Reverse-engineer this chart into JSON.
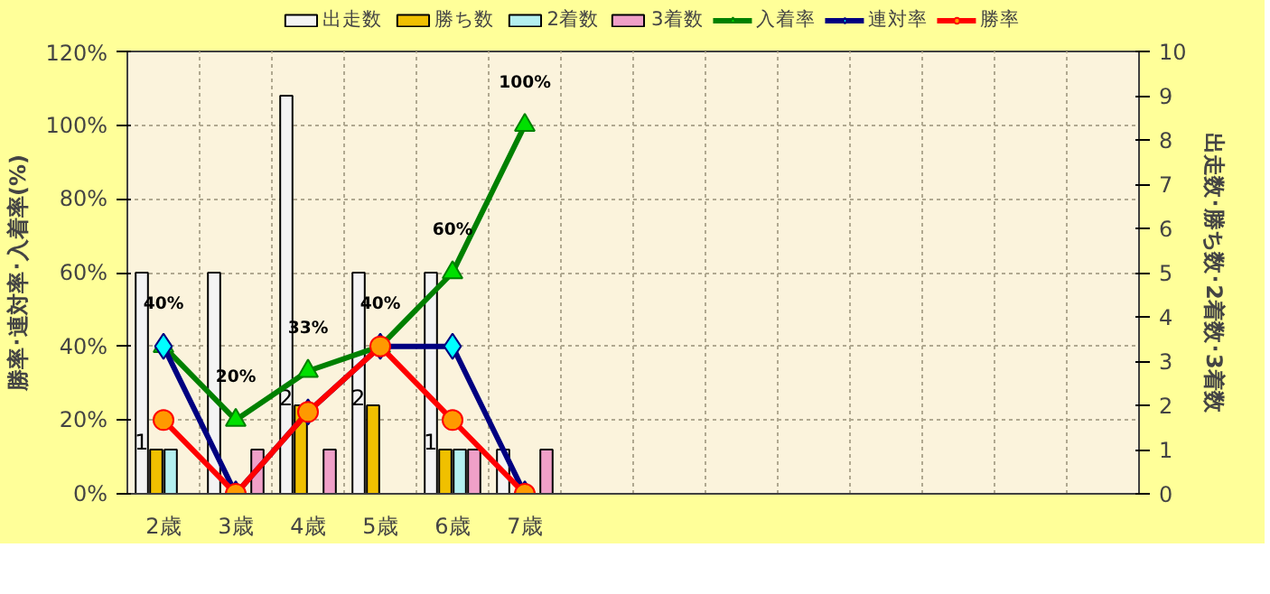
{
  "chart_data": {
    "type": "bar",
    "categories": [
      "2歳",
      "3歳",
      "4歳",
      "5歳",
      "6歳",
      "7歳",
      null,
      null,
      null,
      null,
      null,
      null,
      null,
      null
    ],
    "ylabel": "勝率･連対率･入着率(%)",
    "y2label": "出走数･勝ち数･2着数･3着数",
    "ylim": [
      0,
      120
    ],
    "yticks": [
      {
        "value": 0,
        "label": "0%"
      },
      {
        "value": 20,
        "label": "20%"
      },
      {
        "value": 40,
        "label": "40%"
      },
      {
        "value": 60,
        "label": "60%"
      },
      {
        "value": 80,
        "label": "80%"
      },
      {
        "value": 100,
        "label": "100%"
      },
      {
        "value": 120,
        "label": "120%"
      }
    ],
    "y2lim": [
      0,
      10
    ],
    "y2ticks": [
      0,
      1,
      2,
      3,
      4,
      5,
      6,
      7,
      8,
      9,
      10
    ],
    "grid": true,
    "legend": "top",
    "series": [
      {
        "name": "出走数",
        "axis": "y2",
        "color": "#f4f4f4",
        "values": [
          5,
          5,
          9,
          5,
          5,
          1,
          null,
          null,
          null,
          null,
          null,
          null,
          null,
          null
        ]
      },
      {
        "name": "勝ち数",
        "axis": "y2",
        "color": "#f0c000",
        "values": [
          1,
          0,
          2,
          2,
          1,
          0,
          null,
          null,
          null,
          null,
          null,
          null,
          null,
          null
        ],
        "value_labels": [
          "1",
          null,
          "2",
          "2",
          "1",
          null,
          null,
          null,
          null,
          null,
          null,
          null,
          null,
          null
        ]
      },
      {
        "name": "2着数",
        "axis": "y2",
        "color": "#b4f0f0",
        "values": [
          1,
          0,
          0,
          0,
          1,
          0,
          null,
          null,
          null,
          null,
          null,
          null,
          null,
          null
        ]
      },
      {
        "name": "3着数",
        "axis": "y2",
        "color": "#f0a0c8",
        "values": [
          0,
          1,
          1,
          0,
          1,
          1,
          null,
          null,
          null,
          null,
          null,
          null,
          null,
          null
        ]
      },
      {
        "name": "入着率",
        "type": "line",
        "marker": "triangle",
        "color": "#008000",
        "values": [
          40,
          20,
          33.3,
          40,
          60,
          100,
          null,
          null,
          null,
          null,
          null,
          null,
          null,
          null
        ],
        "value_labels": [
          "40%",
          "20%",
          "33%",
          "40%",
          "60%",
          "100%",
          null,
          null,
          null,
          null,
          null,
          null,
          null,
          null
        ]
      },
      {
        "name": "連対率",
        "type": "line",
        "marker": "diamond",
        "color": "#000080",
        "values": [
          40,
          0,
          22.2,
          40,
          40,
          0,
          null,
          null,
          null,
          null,
          null,
          null,
          null,
          null
        ]
      },
      {
        "name": "勝率",
        "type": "line",
        "marker": "circle",
        "color": "#ff0000",
        "values": [
          20,
          0,
          22.2,
          40,
          20,
          0,
          null,
          null,
          null,
          null,
          null,
          null,
          null,
          null
        ]
      }
    ]
  }
}
